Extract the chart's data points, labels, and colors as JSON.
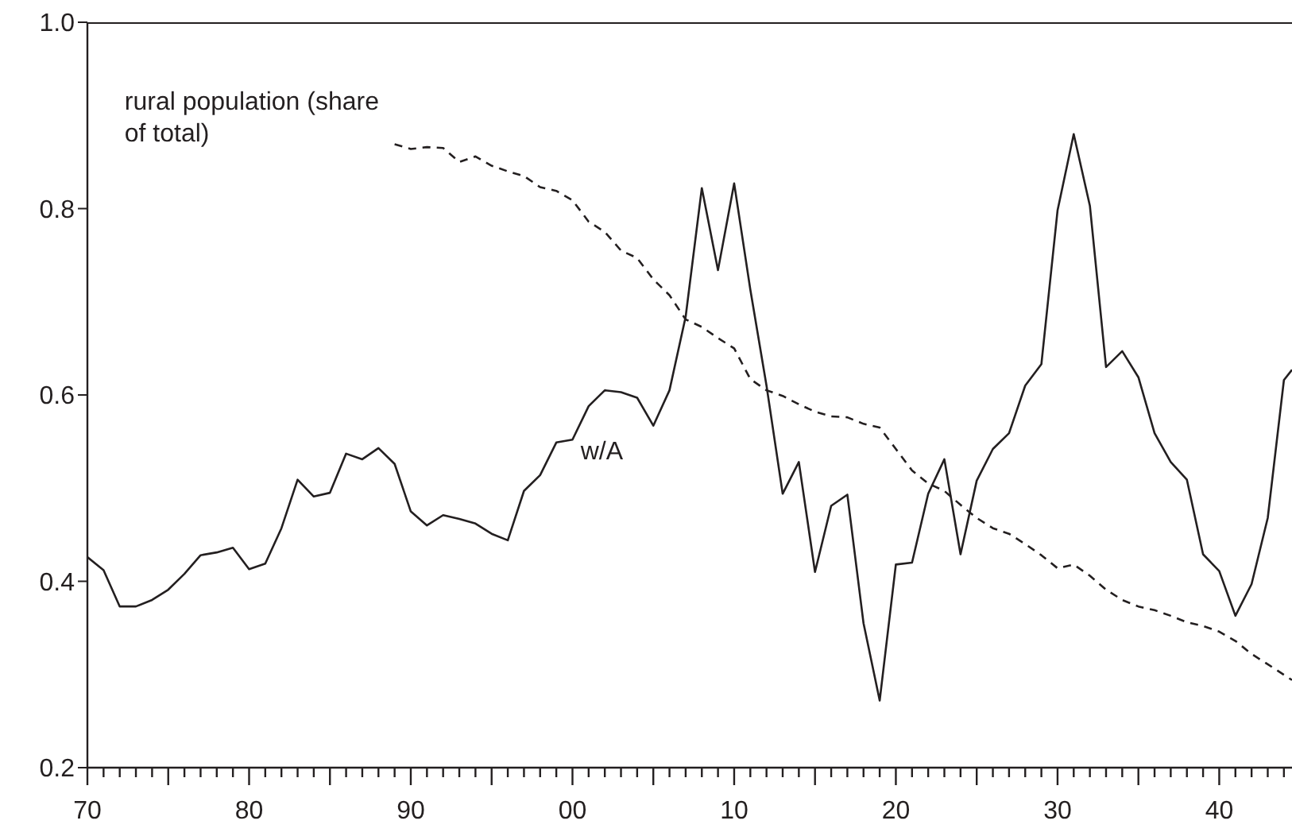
{
  "chart_data": {
    "type": "line",
    "marker": "none",
    "legend": false,
    "grid": false,
    "xlim": [
      1870,
      1944.5
    ],
    "ylim": [
      0.2,
      1.0
    ],
    "xticks": [
      {
        "value": 1870,
        "label": "70"
      },
      {
        "value": 1871,
        "label": null
      },
      {
        "value": 1872,
        "label": null
      },
      {
        "value": 1873,
        "label": null
      },
      {
        "value": 1874,
        "label": null
      },
      {
        "value": 1875,
        "label": null
      },
      {
        "value": 1876,
        "label": null
      },
      {
        "value": 1877,
        "label": null
      },
      {
        "value": 1878,
        "label": null
      },
      {
        "value": 1879,
        "label": null
      },
      {
        "value": 1880,
        "label": "80"
      },
      {
        "value": 1881,
        "label": null
      },
      {
        "value": 1882,
        "label": null
      },
      {
        "value": 1883,
        "label": null
      },
      {
        "value": 1884,
        "label": null
      },
      {
        "value": 1885,
        "label": null
      },
      {
        "value": 1886,
        "label": null
      },
      {
        "value": 1887,
        "label": null
      },
      {
        "value": 1888,
        "label": null
      },
      {
        "value": 1889,
        "label": null
      },
      {
        "value": 1890,
        "label": "90"
      },
      {
        "value": 1891,
        "label": null
      },
      {
        "value": 1892,
        "label": null
      },
      {
        "value": 1893,
        "label": null
      },
      {
        "value": 1894,
        "label": null
      },
      {
        "value": 1895,
        "label": null
      },
      {
        "value": 1896,
        "label": null
      },
      {
        "value": 1897,
        "label": null
      },
      {
        "value": 1898,
        "label": null
      },
      {
        "value": 1899,
        "label": null
      },
      {
        "value": 1900,
        "label": "00"
      },
      {
        "value": 1901,
        "label": null
      },
      {
        "value": 1902,
        "label": null
      },
      {
        "value": 1903,
        "label": null
      },
      {
        "value": 1904,
        "label": null
      },
      {
        "value": 1905,
        "label": null
      },
      {
        "value": 1906,
        "label": null
      },
      {
        "value": 1907,
        "label": null
      },
      {
        "value": 1908,
        "label": null
      },
      {
        "value": 1909,
        "label": null
      },
      {
        "value": 1910,
        "label": "10"
      },
      {
        "value": 1911,
        "label": null
      },
      {
        "value": 1912,
        "label": null
      },
      {
        "value": 1913,
        "label": null
      },
      {
        "value": 1914,
        "label": null
      },
      {
        "value": 1915,
        "label": null
      },
      {
        "value": 1916,
        "label": null
      },
      {
        "value": 1917,
        "label": null
      },
      {
        "value": 1918,
        "label": null
      },
      {
        "value": 1919,
        "label": null
      },
      {
        "value": 1920,
        "label": "20"
      },
      {
        "value": 1921,
        "label": null
      },
      {
        "value": 1922,
        "label": null
      },
      {
        "value": 1923,
        "label": null
      },
      {
        "value": 1924,
        "label": null
      },
      {
        "value": 1925,
        "label": null
      },
      {
        "value": 1926,
        "label": null
      },
      {
        "value": 1927,
        "label": null
      },
      {
        "value": 1928,
        "label": null
      },
      {
        "value": 1929,
        "label": null
      },
      {
        "value": 1930,
        "label": "30"
      },
      {
        "value": 1931,
        "label": null
      },
      {
        "value": 1932,
        "label": null
      },
      {
        "value": 1933,
        "label": null
      },
      {
        "value": 1934,
        "label": null
      },
      {
        "value": 1935,
        "label": null
      },
      {
        "value": 1936,
        "label": null
      },
      {
        "value": 1937,
        "label": null
      },
      {
        "value": 1938,
        "label": null
      },
      {
        "value": 1939,
        "label": null
      },
      {
        "value": 1940,
        "label": "40"
      },
      {
        "value": 1941,
        "label": null
      },
      {
        "value": 1942,
        "label": null
      },
      {
        "value": 1943,
        "label": null
      },
      {
        "value": 1944,
        "label": null
      }
    ],
    "yticks": [
      0.2,
      0.4,
      0.6,
      0.8,
      {
        "value": 1.0,
        "label": "1.0"
      }
    ],
    "series": [
      {
        "name": "w/A",
        "color": "#231f20",
        "line_style": "solid",
        "x": [
          1870,
          1871,
          1872,
          1873,
          1874,
          1875,
          1876,
          1877,
          1878,
          1879,
          1880,
          1881,
          1882,
          1883,
          1884,
          1885,
          1886,
          1887,
          1888,
          1889,
          1890,
          1891,
          1892,
          1893,
          1894,
          1895,
          1896,
          1897,
          1898,
          1899,
          1900,
          1901,
          1902,
          1903,
          1904,
          1905,
          1906,
          1907,
          1908,
          1909,
          1910,
          1911,
          1912,
          1913,
          1914,
          1915,
          1916,
          1917,
          1918,
          1919,
          1920,
          1921,
          1922,
          1923,
          1924,
          1925,
          1926,
          1927,
          1928,
          1929,
          1930,
          1931,
          1932,
          1933,
          1934,
          1935,
          1936,
          1937,
          1938,
          1939,
          1940,
          1941,
          1942,
          1943,
          1944,
          1944.5
        ],
        "values": [
          0.426,
          0.412,
          0.373,
          0.373,
          0.38,
          0.391,
          0.408,
          0.428,
          0.431,
          0.436,
          0.413,
          0.419,
          0.457,
          0.509,
          0.491,
          0.495,
          0.537,
          0.531,
          0.543,
          0.526,
          0.475,
          0.46,
          0.471,
          0.467,
          0.462,
          0.451,
          0.444,
          0.497,
          0.514,
          0.549,
          0.552,
          0.588,
          0.605,
          0.603,
          0.597,
          0.567,
          0.605,
          0.684,
          0.822,
          0.734,
          0.827,
          0.713,
          0.61,
          0.494,
          0.528,
          0.41,
          0.481,
          0.493,
          0.355,
          0.272,
          0.418,
          0.42,
          0.494,
          0.531,
          0.429,
          0.508,
          0.542,
          0.559,
          0.61,
          0.633,
          0.798,
          0.88,
          0.803,
          0.63,
          0.647,
          0.619,
          0.559,
          0.528,
          0.509,
          0.429,
          0.411,
          0.363,
          0.397,
          0.468,
          0.616,
          0.627
        ]
      },
      {
        "name": "rural population (share of total)",
        "color": "#231f20",
        "line_style": "dashed",
        "x": [
          1889,
          1890,
          1891,
          1892,
          1893,
          1894,
          1895,
          1896,
          1897,
          1898,
          1899,
          1900,
          1901,
          1902,
          1903,
          1904,
          1905,
          1906,
          1907,
          1908,
          1909,
          1910,
          1911,
          1912,
          1913,
          1914,
          1915,
          1916,
          1917,
          1918,
          1919,
          1920,
          1921,
          1922,
          1923,
          1924,
          1925,
          1926,
          1927,
          1928,
          1929,
          1930,
          1931,
          1932,
          1933,
          1934,
          1935,
          1936,
          1937,
          1938,
          1939,
          1940,
          1941,
          1942,
          1943,
          1944.5
        ],
        "values": [
          0.869,
          0.864,
          0.866,
          0.865,
          0.85,
          0.856,
          0.846,
          0.84,
          0.835,
          0.823,
          0.819,
          0.809,
          0.786,
          0.775,
          0.755,
          0.747,
          0.724,
          0.707,
          0.681,
          0.673,
          0.661,
          0.65,
          0.617,
          0.605,
          0.599,
          0.59,
          0.582,
          0.577,
          0.576,
          0.569,
          0.565,
          0.542,
          0.519,
          0.505,
          0.497,
          0.482,
          0.468,
          0.457,
          0.451,
          0.44,
          0.428,
          0.414,
          0.418,
          0.406,
          0.391,
          0.38,
          0.373,
          0.369,
          0.363,
          0.356,
          0.352,
          0.346,
          0.336,
          0.322,
          0.311,
          0.294
        ]
      }
    ]
  }
}
